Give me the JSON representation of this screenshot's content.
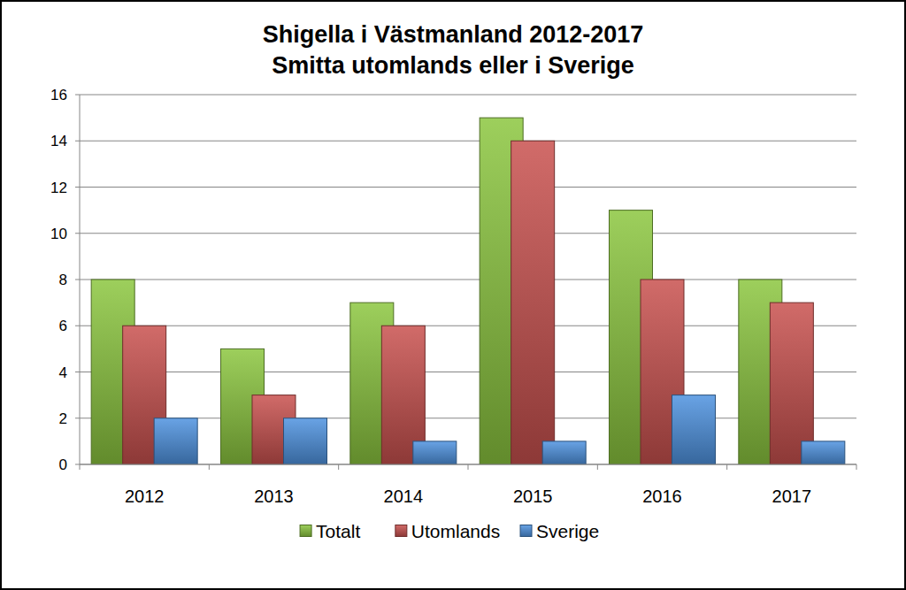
{
  "chart_data": {
    "type": "bar",
    "title": "Shigella i Västmanland 2012-2017",
    "subtitle": "Smitta utomlands eller i Sverige",
    "categories": [
      "2012",
      "2013",
      "2014",
      "2015",
      "2016",
      "2017"
    ],
    "series": [
      {
        "name": "Totalt",
        "color": "#8cc63f",
        "values": [
          8,
          5,
          7,
          15,
          11,
          8
        ]
      },
      {
        "name": "Utomlands",
        "color": "#c9514e",
        "values": [
          6,
          3,
          6,
          14,
          8,
          7
        ]
      },
      {
        "name": "Sverige",
        "color": "#4f93e0",
        "values": [
          2,
          2,
          1,
          1,
          3,
          1
        ]
      }
    ],
    "ylim": [
      0,
      16
    ],
    "yticks": [
      0,
      2,
      4,
      6,
      8,
      10,
      12,
      14,
      16
    ],
    "grid": true,
    "legend": "bottom"
  }
}
